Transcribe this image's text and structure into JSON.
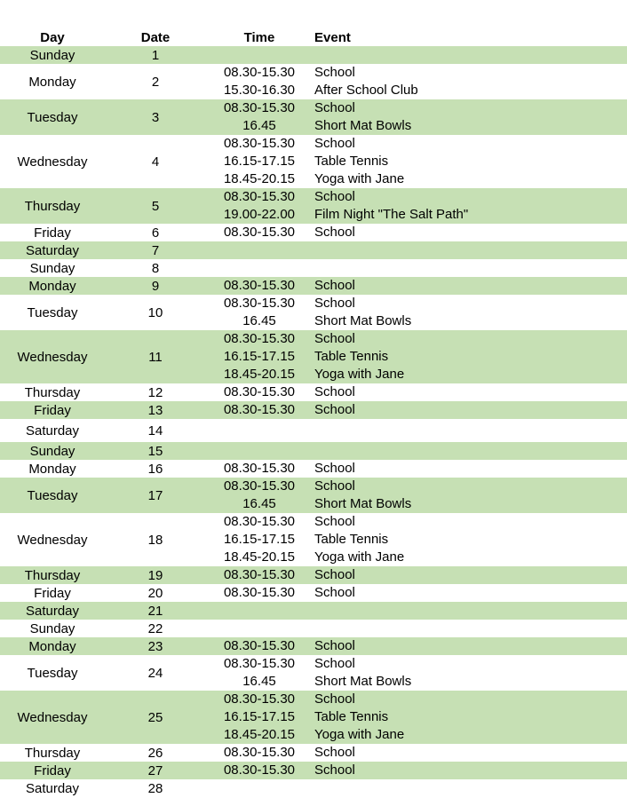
{
  "header": {
    "day": "Day",
    "date": "Date",
    "time": "Time",
    "event": "Event"
  },
  "colors": {
    "band": "#c6e0b4"
  },
  "rows": [
    {
      "day": "Sunday",
      "date": "1",
      "entries": []
    },
    {
      "day": "Monday",
      "date": "2",
      "entries": [
        {
          "time": "08.30-15.30",
          "event": "School"
        },
        {
          "time": "15.30-16.30",
          "event": "After School Club"
        }
      ]
    },
    {
      "day": "Tuesday",
      "date": "3",
      "entries": [
        {
          "time": "08.30-15.30",
          "event": "School"
        },
        {
          "time": "16.45",
          "event": "Short Mat Bowls"
        }
      ]
    },
    {
      "day": "Wednesday",
      "date": "4",
      "entries": [
        {
          "time": "08.30-15.30",
          "event": "School"
        },
        {
          "time": "16.15-17.15",
          "event": "Table Tennis"
        },
        {
          "time": "18.45-20.15",
          "event": "Yoga with Jane"
        }
      ]
    },
    {
      "day": "Thursday",
      "date": "5",
      "entries": [
        {
          "time": "08.30-15.30",
          "event": "School"
        },
        {
          "time": "19.00-22.00",
          "event": "Film Night \"The Salt Path\""
        }
      ]
    },
    {
      "day": "Friday",
      "date": "6",
      "entries": [
        {
          "time": "08.30-15.30",
          "event": "School"
        }
      ]
    },
    {
      "day": "Saturday",
      "date": "7",
      "entries": []
    },
    {
      "day": "Sunday",
      "date": "8",
      "entries": []
    },
    {
      "day": "Monday",
      "date": "9",
      "entries": [
        {
          "time": "08.30-15.30",
          "event": "School"
        }
      ]
    },
    {
      "day": "Tuesday",
      "date": "10",
      "entries": [
        {
          "time": "08.30-15.30",
          "event": "School"
        },
        {
          "time": "16.45",
          "event": "Short Mat Bowls"
        }
      ]
    },
    {
      "day": "Wednesday",
      "date": "11",
      "entries": [
        {
          "time": "08.30-15.30",
          "event": "School"
        },
        {
          "time": "16.15-17.15",
          "event": "Table Tennis"
        },
        {
          "time": "18.45-20.15",
          "event": "Yoga with Jane"
        }
      ]
    },
    {
      "day": "Thursday",
      "date": "12",
      "entries": [
        {
          "time": "08.30-15.30",
          "event": "School"
        }
      ]
    },
    {
      "day": "Friday",
      "date": "13",
      "entries": [
        {
          "time": "08.30-15.30",
          "event": "School"
        }
      ]
    },
    {
      "day": "Saturday",
      "date": "14",
      "entries": []
    },
    {
      "day": "Sunday",
      "date": "15",
      "entries": []
    },
    {
      "day": "Monday",
      "date": "16",
      "entries": [
        {
          "time": "08.30-15.30",
          "event": "School"
        }
      ]
    },
    {
      "day": "Tuesday",
      "date": "17",
      "entries": [
        {
          "time": "08.30-15.30",
          "event": "School"
        },
        {
          "time": "16.45",
          "event": "Short Mat Bowls"
        }
      ]
    },
    {
      "day": "Wednesday",
      "date": "18",
      "entries": [
        {
          "time": "08.30-15.30",
          "event": "School"
        },
        {
          "time": "16.15-17.15",
          "event": "Table Tennis"
        },
        {
          "time": "18.45-20.15",
          "event": "Yoga with Jane"
        }
      ]
    },
    {
      "day": "Thursday",
      "date": "19",
      "entries": [
        {
          "time": "08.30-15.30",
          "event": "School"
        }
      ]
    },
    {
      "day": "Friday",
      "date": "20",
      "entries": [
        {
          "time": "08.30-15.30",
          "event": "School"
        }
      ]
    },
    {
      "day": "Saturday",
      "date": "21",
      "entries": []
    },
    {
      "day": "Sunday",
      "date": "22",
      "entries": []
    },
    {
      "day": "Monday",
      "date": "23",
      "entries": [
        {
          "time": "08.30-15.30",
          "event": "School"
        }
      ]
    },
    {
      "day": "Tuesday",
      "date": "24",
      "entries": [
        {
          "time": "08.30-15.30",
          "event": "School"
        },
        {
          "time": "16.45",
          "event": "Short Mat Bowls"
        }
      ]
    },
    {
      "day": "Wednesday",
      "date": "25",
      "entries": [
        {
          "time": "08.30-15.30",
          "event": "School"
        },
        {
          "time": "16.15-17.15",
          "event": "Table Tennis"
        },
        {
          "time": "18.45-20.15",
          "event": "Yoga with Jane"
        }
      ]
    },
    {
      "day": "Thursday",
      "date": "26",
      "entries": [
        {
          "time": "08.30-15.30",
          "event": "School"
        }
      ]
    },
    {
      "day": "Friday",
      "date": "27",
      "entries": [
        {
          "time": "08.30-15.30",
          "event": "School"
        }
      ]
    },
    {
      "day": "Saturday",
      "date": "28",
      "entries": []
    }
  ]
}
